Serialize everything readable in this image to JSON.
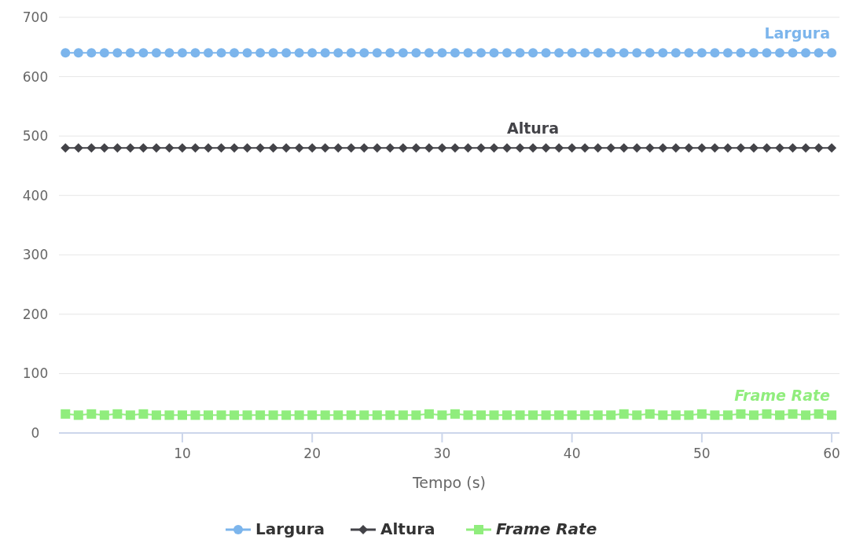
{
  "chart_data": {
    "type": "line",
    "xlabel": "Tempo (s)",
    "x": [
      1,
      2,
      3,
      4,
      5,
      6,
      7,
      8,
      9,
      10,
      11,
      12,
      13,
      14,
      15,
      16,
      17,
      18,
      19,
      20,
      21,
      22,
      23,
      24,
      25,
      26,
      27,
      28,
      29,
      30,
      31,
      32,
      33,
      34,
      35,
      36,
      37,
      38,
      39,
      40,
      41,
      42,
      43,
      44,
      45,
      46,
      47,
      48,
      49,
      50,
      51,
      52,
      53,
      54,
      55,
      56,
      57,
      58,
      59,
      60
    ],
    "xlim": [
      0.5,
      60.6
    ],
    "xticks": [
      10,
      20,
      30,
      40,
      50,
      60
    ],
    "ylim": [
      0,
      700
    ],
    "yticks": [
      0,
      100,
      200,
      300,
      400,
      500,
      600,
      700
    ],
    "grid": "y",
    "legend": "bottom",
    "series": [
      {
        "name": "Largura",
        "color": "#7cb5ec",
        "marker": "circle",
        "values": [
          640,
          640,
          640,
          640,
          640,
          640,
          640,
          640,
          640,
          640,
          640,
          640,
          640,
          640,
          640,
          640,
          640,
          640,
          640,
          640,
          640,
          640,
          640,
          640,
          640,
          640,
          640,
          640,
          640,
          640,
          640,
          640,
          640,
          640,
          640,
          640,
          640,
          640,
          640,
          640,
          640,
          640,
          640,
          640,
          640,
          640,
          640,
          640,
          640,
          640,
          640,
          640,
          640,
          640,
          640,
          640,
          640,
          640,
          640,
          640
        ]
      },
      {
        "name": "Altura",
        "color": "#434348",
        "marker": "diamond",
        "values": [
          480,
          480,
          480,
          480,
          480,
          480,
          480,
          480,
          480,
          480,
          480,
          480,
          480,
          480,
          480,
          480,
          480,
          480,
          480,
          480,
          480,
          480,
          480,
          480,
          480,
          480,
          480,
          480,
          480,
          480,
          480,
          480,
          480,
          480,
          480,
          480,
          480,
          480,
          480,
          480,
          480,
          480,
          480,
          480,
          480,
          480,
          480,
          480,
          480,
          480,
          480,
          480,
          480,
          480,
          480,
          480,
          480,
          480,
          480,
          480
        ]
      },
      {
        "name": "Frame Rate",
        "color": "#90ed7d",
        "marker": "square",
        "values": [
          32,
          30,
          32,
          30,
          32,
          30,
          32,
          30,
          30,
          30,
          30,
          30,
          30,
          30,
          30,
          30,
          30,
          30,
          30,
          30,
          30,
          30,
          30,
          30,
          30,
          30,
          30,
          30,
          32,
          30,
          32,
          30,
          30,
          30,
          30,
          30,
          30,
          30,
          30,
          30,
          30,
          30,
          30,
          32,
          30,
          32,
          30,
          30,
          30,
          32,
          30,
          30,
          32,
          30,
          32,
          30,
          32,
          30,
          32,
          30
        ]
      }
    ]
  }
}
